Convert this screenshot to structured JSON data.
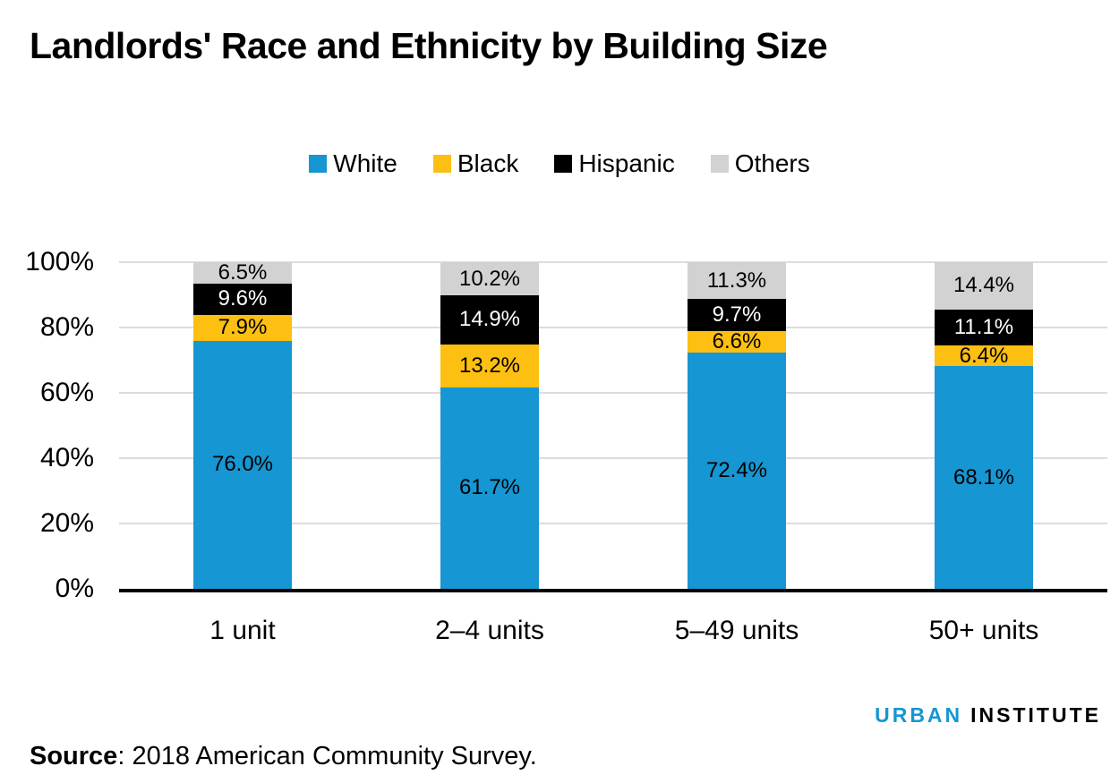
{
  "title": "Landlords' Race and Ethnicity by Building Size",
  "chart_data": {
    "type": "bar",
    "stacked": true,
    "title": "Landlords' Race and Ethnicity by Building Size",
    "categories": [
      "1 unit",
      "2–4 units",
      "5–49 units",
      "50+ units"
    ],
    "series": [
      {
        "name": "White",
        "color": "#1696d2",
        "label_color": "#000000",
        "values": [
          76.0,
          61.7,
          72.4,
          68.1
        ]
      },
      {
        "name": "Black",
        "color": "#fdbf11",
        "label_color": "#000000",
        "values": [
          7.9,
          13.2,
          6.6,
          6.4
        ]
      },
      {
        "name": "Hispanic",
        "color": "#000000",
        "label_color": "#ffffff",
        "values": [
          9.6,
          14.9,
          9.7,
          11.1
        ]
      },
      {
        "name": "Others",
        "color": "#d2d2d2",
        "label_color": "#000000",
        "values": [
          6.5,
          10.2,
          11.3,
          14.4
        ]
      }
    ],
    "y_ticks": [
      0,
      20,
      40,
      60,
      80,
      100
    ],
    "y_tick_suffix": "%",
    "ylim": [
      0,
      100
    ],
    "grid": true,
    "legend_position": "top",
    "value_decimals": 1,
    "value_suffix": "%",
    "xlabel": "",
    "ylabel": ""
  },
  "branding": {
    "word1": "URBAN",
    "word2": "INSTITUTE",
    "word1_color": "#1696d2",
    "word2_color": "#000000"
  },
  "source": {
    "label": "Source",
    "text": ": 2018 American Community Survey."
  },
  "colors": {
    "gridline": "#dcdcdc",
    "axis_line": "#000000",
    "background": "#ffffff",
    "text": "#000000"
  }
}
